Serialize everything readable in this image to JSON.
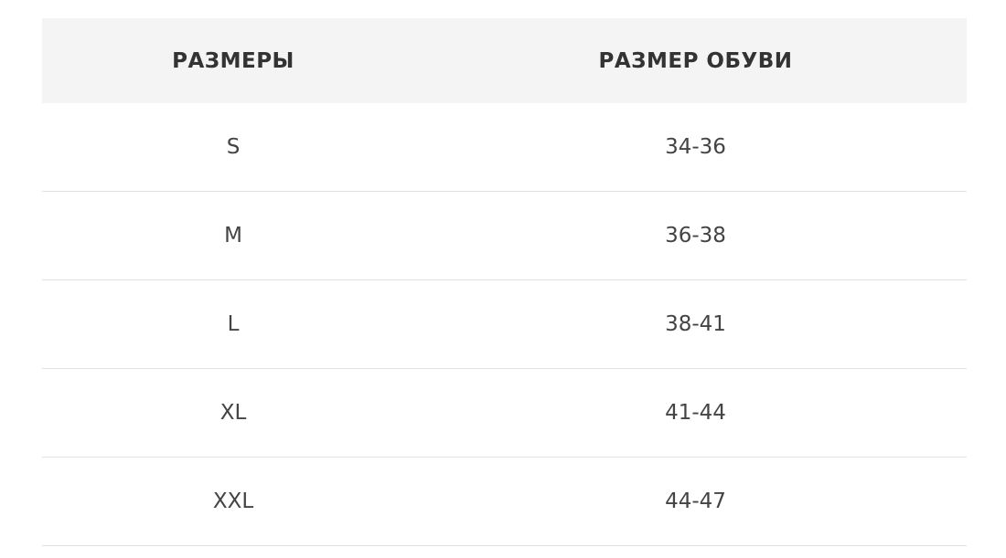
{
  "table": {
    "headers": [
      "РАЗМЕРЫ",
      "РАЗМЕР ОБУВИ"
    ],
    "rows": [
      [
        "S",
        "34-36"
      ],
      [
        "M",
        "36-38"
      ],
      [
        "L",
        "38-41"
      ],
      [
        "XL",
        "41-44"
      ],
      [
        "XXL",
        "44-47"
      ]
    ]
  }
}
